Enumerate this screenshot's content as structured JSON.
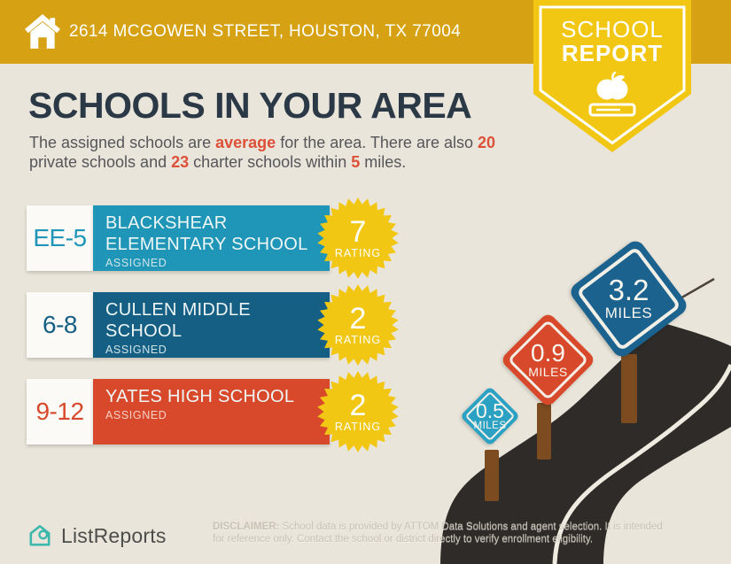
{
  "header": {
    "address": "2614 MCGOWEN STREET, HOUSTON, TX 77004",
    "badge_line1": "SCHOOL",
    "badge_line2": "REPORT"
  },
  "main": {
    "title": "SCHOOLS IN YOUR AREA",
    "subtitle": {
      "p1": "The assigned schools are ",
      "h1": "average",
      "p2": " for the area. There are also ",
      "h2": "20",
      "p3": " private schools and ",
      "h3": "23",
      "p4": " charter schools within ",
      "h4": "5",
      "p5": " miles."
    }
  },
  "schools": [
    {
      "grades": "EE-5",
      "name1": "BLACKSHEAR",
      "name2": "ELEMENTARY SCHOOL",
      "assigned_label": "ASSIGNED",
      "rating": "7",
      "rating_label": "RATING",
      "bar_color": "#1f96b7"
    },
    {
      "grades": "6-8",
      "name1": "CULLEN MIDDLE",
      "name2": "SCHOOL",
      "assigned_label": "ASSIGNED",
      "rating": "2",
      "rating_label": "RATING",
      "bar_color": "#155f84"
    },
    {
      "grades": "9-12",
      "name1": "YATES HIGH SCHOOL",
      "name2": "",
      "assigned_label": "ASSIGNED",
      "rating": "2",
      "rating_label": "RATING",
      "bar_color": "#d8492c"
    }
  ],
  "signs": [
    {
      "value": "0.5",
      "unit": "MILES",
      "color": "#2ba1c3"
    },
    {
      "value": "0.9",
      "unit": "MILES",
      "color": "#d8492c"
    },
    {
      "value": "3.2",
      "unit": "MILES",
      "color": "#1b628f"
    }
  ],
  "footer": {
    "brand": "ListReports",
    "disclaimer_label": "DISCLAIMER:",
    "disclaimer_line1": " School data is provided by ATTOM Data Solutions and agent selection. It is intended",
    "disclaimer_line2": "for reference only. Contact the school or district directly to verify enrollment eligibility."
  },
  "colors": {
    "header_gold": "#d6a213",
    "badge_yellow": "#f2c713",
    "rating_yellow": "#f2c713",
    "background_cream": "#e9e5da",
    "title_navy": "#2b3845",
    "body_gray": "#56565a",
    "accent_red": "#dc5038",
    "elementary_teal": "#1f96b7",
    "middle_blue": "#155f84",
    "high_red": "#d8492c",
    "road_dark": "#2e2b28",
    "post_brown": "#7c4b20",
    "brand_teal": "#3cb8ac"
  }
}
